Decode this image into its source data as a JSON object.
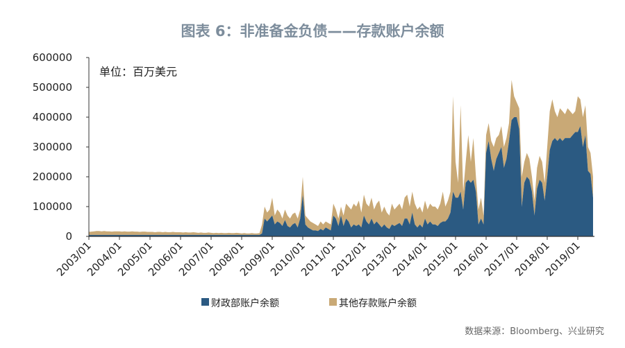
{
  "chart_data": {
    "type": "area",
    "stacked": true,
    "title": "图表 6：非准备金负债——存款账户余额",
    "unit_label": "单位：百万美元",
    "source": "数据来源：Bloomberg、兴业研究",
    "ylim": [
      0,
      600000
    ],
    "yticks": [
      "0",
      "100000",
      "200000",
      "300000",
      "400000",
      "500000",
      "600000"
    ],
    "yticks_values": [
      0,
      100000,
      200000,
      300000,
      400000,
      500000,
      600000
    ],
    "xticks": [
      "2003/01",
      "2004/01",
      "2005/01",
      "2006/01",
      "2007/01",
      "2008/01",
      "2009/01",
      "2010/01",
      "2011/01",
      "2012/01",
      "2013/01",
      "2014/01",
      "2015/01",
      "2016/01",
      "2017/01",
      "2018/01",
      "2019/01"
    ],
    "grid": false,
    "legend_placement": "bottom",
    "colors": {
      "treasury": "#2b5a82",
      "other": "#c9a976",
      "title": "#7d8d9c"
    },
    "x_first": "2003/01",
    "series": [
      {
        "name": "财政部账户余额",
        "color": "#2b5a82",
        "values": [
          5000,
          5000,
          5000,
          5000,
          5000,
          5000,
          5000,
          5000,
          5000,
          5000,
          5000,
          5000,
          5000,
          5000,
          5000,
          5000,
          5000,
          5000,
          5000,
          5000,
          5000,
          5000,
          5000,
          5000,
          5000,
          5000,
          5000,
          5000,
          5000,
          5000,
          5000,
          5000,
          5000,
          5000,
          5000,
          5000,
          5000,
          5000,
          5000,
          5000,
          5000,
          5000,
          5000,
          5000,
          5000,
          5000,
          5000,
          5000,
          5000,
          5000,
          5000,
          5000,
          5000,
          5000,
          5000,
          5000,
          5000,
          5000,
          5000,
          5000,
          5000,
          5000,
          5000,
          5000,
          5000,
          5000,
          5000,
          5000,
          10000,
          60000,
          50000,
          60000,
          70000,
          40000,
          50000,
          45000,
          35000,
          55000,
          35000,
          30000,
          40000,
          45000,
          30000,
          60000,
          140000,
          40000,
          30000,
          25000,
          20000,
          20000,
          18000,
          25000,
          20000,
          30000,
          25000,
          20000,
          70000,
          60000,
          35000,
          70000,
          35000,
          60000,
          50000,
          30000,
          40000,
          35000,
          40000,
          30000,
          70000,
          50000,
          40000,
          60000,
          40000,
          50000,
          40000,
          30000,
          40000,
          30000,
          25000,
          40000,
          35000,
          40000,
          45000,
          35000,
          60000,
          60000,
          40000,
          80000,
          40000,
          30000,
          40000,
          30000,
          60000,
          40000,
          50000,
          40000,
          40000,
          35000,
          45000,
          50000,
          50000,
          60000,
          80000,
          150000,
          130000,
          130000,
          150000,
          90000,
          180000,
          190000,
          180000,
          190000,
          150000,
          40000,
          60000,
          40000,
          280000,
          320000,
          260000,
          220000,
          260000,
          280000,
          300000,
          230000,
          260000,
          320000,
          390000,
          400000,
          400000,
          360000,
          100000,
          180000,
          200000,
          190000,
          150000,
          70000,
          160000,
          190000,
          180000,
          120000,
          200000,
          290000,
          320000,
          330000,
          320000,
          330000,
          320000,
          330000,
          330000,
          330000,
          340000,
          350000,
          350000,
          370000,
          300000,
          340000,
          220000,
          210000,
          130000
        ]
      },
      {
        "name": "其他存款账户余额",
        "color": "#c9a976",
        "values": [
          10000,
          11000,
          12000,
          13000,
          13000,
          12000,
          13000,
          12000,
          12000,
          11000,
          12000,
          12000,
          12000,
          11000,
          12000,
          11000,
          11000,
          12000,
          11000,
          11000,
          10000,
          11000,
          11000,
          10000,
          10000,
          10000,
          9000,
          10000,
          10000,
          9000,
          10000,
          9000,
          9000,
          10000,
          9000,
          9000,
          9000,
          8000,
          9000,
          8000,
          8000,
          9000,
          8000,
          7000,
          8000,
          7000,
          7000,
          8000,
          7000,
          6000,
          7000,
          6000,
          7000,
          6000,
          6000,
          7000,
          6000,
          6000,
          7000,
          6000,
          5000,
          6000,
          5000,
          5000,
          6000,
          5000,
          5000,
          6000,
          30000,
          40000,
          30000,
          30000,
          60000,
          30000,
          40000,
          35000,
          25000,
          35000,
          35000,
          30000,
          35000,
          35000,
          30000,
          30000,
          60000,
          30000,
          30000,
          25000,
          25000,
          20000,
          17000,
          25000,
          20000,
          20000,
          20000,
          20000,
          40000,
          30000,
          25000,
          30000,
          35000,
          50000,
          50000,
          60000,
          70000,
          65000,
          80000,
          50000,
          70000,
          60000,
          60000,
          70000,
          50000,
          60000,
          80000,
          50000,
          60000,
          50000,
          45000,
          70000,
          55000,
          60000,
          65000,
          55000,
          70000,
          80000,
          60000,
          70000,
          70000,
          60000,
          60000,
          50000,
          60000,
          50000,
          60000,
          60000,
          60000,
          55000,
          65000,
          100000,
          50000,
          60000,
          70000,
          320000,
          120000,
          50000,
          290000,
          60000,
          70000,
          150000,
          70000,
          140000,
          50000,
          50000,
          70000,
          30000,
          60000,
          60000,
          60000,
          80000,
          70000,
          60000,
          70000,
          70000,
          70000,
          60000,
          135000,
          70000,
          50000,
          70000,
          100000,
          70000,
          80000,
          70000,
          50000,
          50000,
          70000,
          80000,
          70000,
          60000,
          100000,
          130000,
          140000,
          90000,
          80000,
          100000,
          100000,
          80000,
          100000,
          90000,
          70000,
          70000,
          120000,
          90000,
          100000,
          100000,
          80000,
          70000,
          70000
        ]
      }
    ]
  }
}
